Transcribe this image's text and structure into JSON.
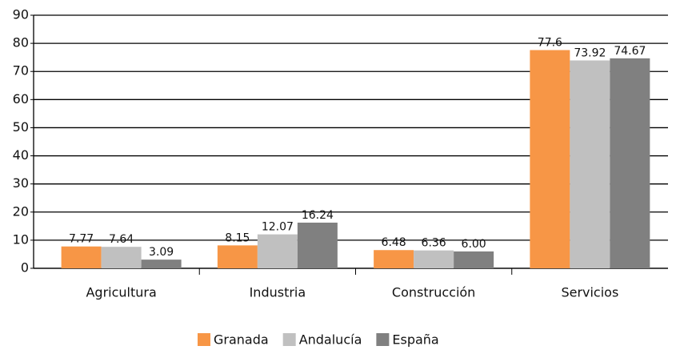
{
  "chart_data": {
    "type": "bar",
    "categories": [
      "Agricultura",
      "Industria",
      "Construcción",
      "Servicios"
    ],
    "series": [
      {
        "name": "Granada",
        "color": "#f79646",
        "values": [
          7.77,
          8.15,
          6.48,
          77.6
        ]
      },
      {
        "name": "Andalucía",
        "color": "#c0c0c0",
        "values": [
          7.64,
          12.07,
          6.36,
          73.92
        ]
      },
      {
        "name": "España",
        "color": "#808080",
        "values": [
          3.09,
          16.24,
          6.0,
          74.67
        ],
        "value_labels": [
          "3.09",
          "16.24",
          "6.00",
          "74.67"
        ]
      }
    ],
    "ylim": [
      0,
      90
    ],
    "yticks": [
      0,
      10,
      20,
      30,
      40,
      50,
      60,
      70,
      80,
      90
    ],
    "grid": true,
    "legend": "bottom"
  }
}
